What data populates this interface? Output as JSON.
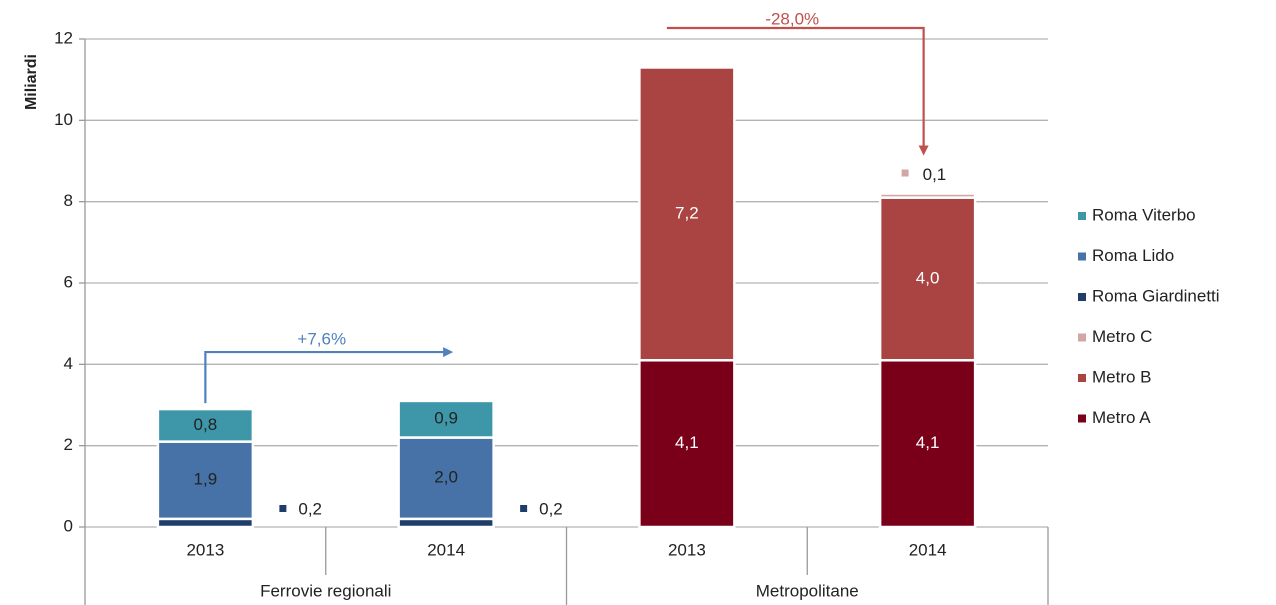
{
  "chart_data": {
    "type": "stacked_bar",
    "y_label": "Miliardi",
    "categories": [
      "2013",
      "2014",
      "2013",
      "2014"
    ],
    "groups": [
      {
        "label": "Ferrovie regionali",
        "size": 2
      },
      {
        "label": "Metropolitane",
        "size": 2
      }
    ],
    "ylim": [
      0,
      12
    ],
    "yticks": [
      0,
      2,
      4,
      6,
      8,
      10,
      12
    ],
    "grid": true,
    "legend": "right",
    "series": [
      {
        "name": "Roma Viterbo",
        "color": "#3d97a8",
        "label_color": "#222",
        "values": [
          0.8,
          0.9,
          null,
          null
        ],
        "value_labels": [
          "0,8",
          "0,9",
          null,
          null
        ]
      },
      {
        "name": "Roma Lido",
        "color": "#4672a8",
        "label_color": "#222",
        "values": [
          1.9,
          2.0,
          null,
          null
        ],
        "value_labels": [
          "1,9",
          "2,0",
          null,
          null
        ]
      },
      {
        "name": "Roma Giardinetti",
        "color": "#1f3d6b",
        "label_color": "#222",
        "label_position": "right",
        "values": [
          0.2,
          0.2,
          null,
          null
        ],
        "value_labels": [
          "0,2",
          "0,2",
          null,
          null
        ]
      },
      {
        "name": "Metro C",
        "color": "#d2a6a6",
        "label_color": "#222",
        "label_position": "top",
        "values": [
          null,
          null,
          null,
          0.1
        ],
        "value_labels": [
          null,
          null,
          null,
          "0,1"
        ]
      },
      {
        "name": "Metro B",
        "color": "#a94442",
        "label_color": "#fff",
        "values": [
          null,
          null,
          7.2,
          4.0
        ],
        "value_labels": [
          null,
          null,
          "7,2",
          "4,0"
        ]
      },
      {
        "name": "Metro A",
        "color": "#7a0019",
        "label_color": "#fff",
        "values": [
          null,
          null,
          4.1,
          4.1
        ],
        "value_labels": [
          null,
          null,
          "4,1",
          "4,1"
        ]
      }
    ],
    "annotations": [
      {
        "text": "+7,6%",
        "color": "#4f81bd"
      },
      {
        "text": "-28,0%",
        "color": "#c0504d"
      }
    ]
  }
}
